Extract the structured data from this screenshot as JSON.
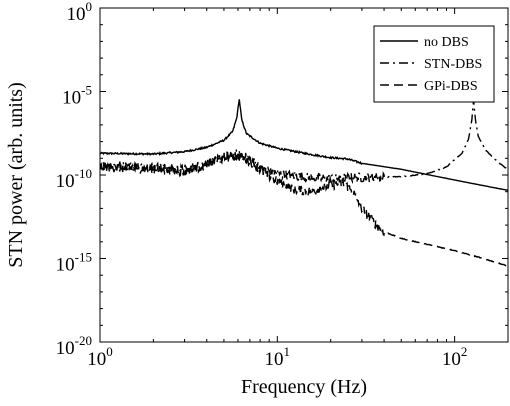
{
  "chart_data": {
    "type": "line",
    "title": "",
    "xlabel": "Frequency (Hz)",
    "ylabel": "STN power (arb. units)",
    "x_scale": "log",
    "y_scale": "log",
    "xlim": [
      1,
      200
    ],
    "ylim": [
      1e-20,
      1
    ],
    "grid": false,
    "legend_position": "top-right",
    "x_ticks": [
      {
        "value": 1,
        "base": "10",
        "exp": "0"
      },
      {
        "value": 10,
        "base": "10",
        "exp": "1"
      },
      {
        "value": 100,
        "base": "10",
        "exp": "2"
      }
    ],
    "y_ticks": [
      {
        "value": 1,
        "base": "10",
        "exp": "0"
      },
      {
        "value": 1e-05,
        "base": "10",
        "exp": "-5"
      },
      {
        "value": 1e-10,
        "base": "10",
        "exp": "-10"
      },
      {
        "value": 1e-15,
        "base": "10",
        "exp": "-15"
      },
      {
        "value": 1e-20,
        "base": "10",
        "exp": "-20"
      }
    ],
    "series": [
      {
        "name": "no DBS",
        "style": "solid",
        "points": [
          [
            1,
            2e-09
          ],
          [
            2,
            1.8e-09
          ],
          [
            3,
            2.5e-09
          ],
          [
            4,
            4.5e-09
          ],
          [
            5,
            1.2e-08
          ],
          [
            5.6,
            4e-08
          ],
          [
            5.9,
            2.5e-07
          ],
          [
            6.1,
            3.5e-06
          ],
          [
            6.3,
            2e-07
          ],
          [
            6.7,
            3e-08
          ],
          [
            8,
            8e-09
          ],
          [
            10,
            4e-09
          ],
          [
            15,
            1.8e-09
          ],
          [
            20,
            1.1e-09
          ],
          [
            25,
            9e-10
          ],
          [
            30,
            5e-10
          ],
          [
            50,
            2.2e-10
          ],
          [
            100,
            5e-11
          ],
          [
            200,
            1.2e-11
          ]
        ]
      },
      {
        "name": "STN-DBS",
        "style": "dashdot",
        "points": [
          [
            1,
            4e-10
          ],
          [
            2,
            3e-10
          ],
          [
            3,
            2e-10
          ],
          [
            4,
            5e-10
          ],
          [
            5,
            1.2e-09
          ],
          [
            6,
            1.8e-09
          ],
          [
            7,
            9e-10
          ],
          [
            8,
            3e-10
          ],
          [
            10,
            1.2e-10
          ],
          [
            15,
            7e-11
          ],
          [
            20,
            6e-11
          ],
          [
            25,
            7e-11
          ],
          [
            30,
            7e-11
          ],
          [
            50,
            8e-11
          ],
          [
            70,
            1.2e-10
          ],
          [
            90,
            3e-10
          ],
          [
            110,
            2e-09
          ],
          [
            120,
            1.5e-08
          ],
          [
            125,
            2e-07
          ],
          [
            128,
            3e-06
          ],
          [
            131,
            2e-07
          ],
          [
            136,
            2e-08
          ],
          [
            150,
            3e-09
          ],
          [
            170,
            8e-10
          ],
          [
            200,
            2e-10
          ]
        ]
      },
      {
        "name": "GPi-DBS",
        "style": "dashed",
        "points": [
          [
            1,
            3e-10
          ],
          [
            2,
            2.2e-10
          ],
          [
            3,
            1.5e-10
          ],
          [
            4,
            4e-10
          ],
          [
            5,
            1e-09
          ],
          [
            6,
            1.4e-09
          ],
          [
            7,
            7e-10
          ],
          [
            8,
            2e-10
          ],
          [
            10,
            4e-11
          ],
          [
            12,
            1.5e-11
          ],
          [
            15,
            1e-11
          ],
          [
            20,
            2.5e-11
          ],
          [
            24,
            3e-11
          ],
          [
            27,
            8e-12
          ],
          [
            30,
            1e-12
          ],
          [
            35,
            1.5e-13
          ],
          [
            40,
            4e-14
          ],
          [
            50,
            1.6e-14
          ],
          [
            70,
            7e-15
          ],
          [
            100,
            3e-15
          ],
          [
            150,
            9e-16
          ],
          [
            200,
            3.5e-16
          ]
        ]
      }
    ]
  }
}
